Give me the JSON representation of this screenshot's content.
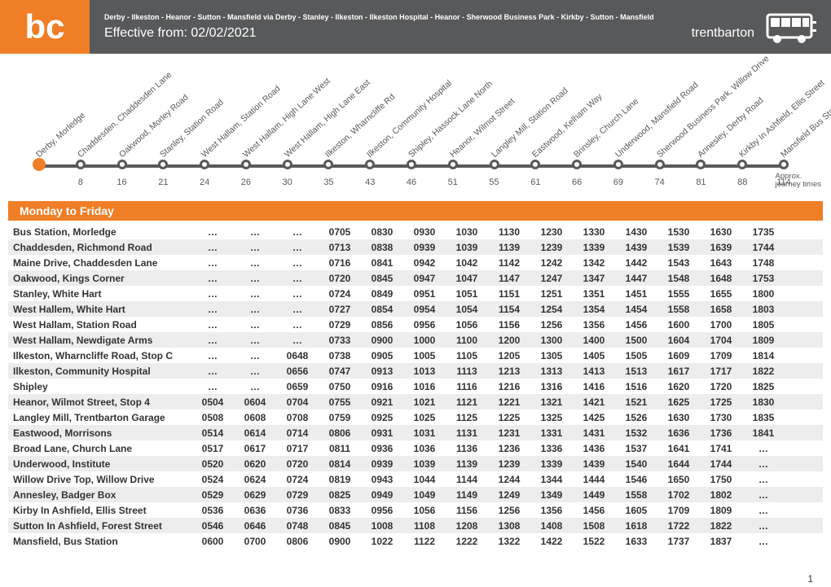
{
  "header": {
    "logo": "bc",
    "route_description": "Derby - Ilkeston - Heanor - Sutton - Mansfield via Derby - Stanley - Ilkeston - Ilkeston Hospital - Heanor - Sherwood Business Park - Kirkby - Sutton - Mansfield",
    "effective": "Effective from: 02/02/2021",
    "operator": "trentbarton"
  },
  "colors": {
    "accent": "#f07e26",
    "dark": "#58595b",
    "shade": "#ededed"
  },
  "diagram": {
    "approx_label": "Approx.\njourney times",
    "stops": [
      {
        "label": "Derby, Morledge",
        "time": ""
      },
      {
        "label": "Chaddesden, Chaddesden Lane",
        "time": "8"
      },
      {
        "label": "Oakwood, Morley Road",
        "time": "16"
      },
      {
        "label": "Stanley, Station Road",
        "time": "21"
      },
      {
        "label": "West Hallam, Station Road",
        "time": "24"
      },
      {
        "label": "West Hallam, High Lane West",
        "time": "26"
      },
      {
        "label": "West Hallam, High Lane East",
        "time": "30"
      },
      {
        "label": "Ilkeston, Wharncliffe Rd",
        "time": "35"
      },
      {
        "label": "Ilkeston, Community Hospital",
        "time": "43"
      },
      {
        "label": "Shipley, Hassock Lane North",
        "time": "46"
      },
      {
        "label": "Heanor, Wilmot Street",
        "time": "51"
      },
      {
        "label": "Langley Mill, Station Road",
        "time": "55"
      },
      {
        "label": "Eastwood, Kelham Way",
        "time": "61"
      },
      {
        "label": "Brinsley, Church Lane",
        "time": "66"
      },
      {
        "label": "Underwood, Mansfield Road",
        "time": "69"
      },
      {
        "label": "Sherwood Business Park, Willow Drive",
        "time": "74"
      },
      {
        "label": "Annesley, Derby Road",
        "time": "81"
      },
      {
        "label": "Kirkby In Ashfield, Ellis Street",
        "time": "88"
      },
      {
        "label": "Mansfield Bus Station",
        "time": "114"
      }
    ]
  },
  "timetable": {
    "day_header": "Monday to Friday",
    "rows": [
      {
        "stop": "Bus Station, Morledge",
        "times": [
          "…",
          "…",
          "…",
          "0705",
          "0830",
          "0930",
          "1030",
          "1130",
          "1230",
          "1330",
          "1430",
          "1530",
          "1630",
          "1735"
        ]
      },
      {
        "stop": "Chaddesden, Richmond Road",
        "times": [
          "…",
          "…",
          "…",
          "0713",
          "0838",
          "0939",
          "1039",
          "1139",
          "1239",
          "1339",
          "1439",
          "1539",
          "1639",
          "1744"
        ]
      },
      {
        "stop": "Maine Drive, Chaddesden Lane",
        "times": [
          "…",
          "…",
          "…",
          "0716",
          "0841",
          "0942",
          "1042",
          "1142",
          "1242",
          "1342",
          "1442",
          "1543",
          "1643",
          "1748"
        ]
      },
      {
        "stop": "Oakwood, Kings Corner",
        "times": [
          "…",
          "…",
          "…",
          "0720",
          "0845",
          "0947",
          "1047",
          "1147",
          "1247",
          "1347",
          "1447",
          "1548",
          "1648",
          "1753"
        ]
      },
      {
        "stop": "Stanley, White Hart",
        "times": [
          "…",
          "…",
          "…",
          "0724",
          "0849",
          "0951",
          "1051",
          "1151",
          "1251",
          "1351",
          "1451",
          "1555",
          "1655",
          "1800"
        ]
      },
      {
        "stop": "West Hallem, White Hart",
        "times": [
          "…",
          "…",
          "…",
          "0727",
          "0854",
          "0954",
          "1054",
          "1154",
          "1254",
          "1354",
          "1454",
          "1558",
          "1658",
          "1803"
        ]
      },
      {
        "stop": "West Hallam, Station Road",
        "times": [
          "…",
          "…",
          "…",
          "0729",
          "0856",
          "0956",
          "1056",
          "1156",
          "1256",
          "1356",
          "1456",
          "1600",
          "1700",
          "1805"
        ]
      },
      {
        "stop": "West Hallam, Newdigate Arms",
        "times": [
          "…",
          "…",
          "…",
          "0733",
          "0900",
          "1000",
          "1100",
          "1200",
          "1300",
          "1400",
          "1500",
          "1604",
          "1704",
          "1809"
        ]
      },
      {
        "stop": "Ilkeston, Wharncliffe Road, Stop C",
        "times": [
          "…",
          "…",
          "0648",
          "0738",
          "0905",
          "1005",
          "1105",
          "1205",
          "1305",
          "1405",
          "1505",
          "1609",
          "1709",
          "1814"
        ]
      },
      {
        "stop": "Ilkeston, Community Hospital",
        "times": [
          "…",
          "…",
          "0656",
          "0747",
          "0913",
          "1013",
          "1113",
          "1213",
          "1313",
          "1413",
          "1513",
          "1617",
          "1717",
          "1822"
        ]
      },
      {
        "stop": "Shipley",
        "times": [
          "…",
          "…",
          "0659",
          "0750",
          "0916",
          "1016",
          "1116",
          "1216",
          "1316",
          "1416",
          "1516",
          "1620",
          "1720",
          "1825"
        ]
      },
      {
        "stop": "Heanor, Wilmot Street, Stop 4",
        "times": [
          "0504",
          "0604",
          "0704",
          "0755",
          "0921",
          "1021",
          "1121",
          "1221",
          "1321",
          "1421",
          "1521",
          "1625",
          "1725",
          "1830"
        ]
      },
      {
        "stop": "Langley Mill, Trentbarton Garage",
        "times": [
          "0508",
          "0608",
          "0708",
          "0759",
          "0925",
          "1025",
          "1125",
          "1225",
          "1325",
          "1425",
          "1526",
          "1630",
          "1730",
          "1835"
        ]
      },
      {
        "stop": "Eastwood, Morrisons",
        "times": [
          "0514",
          "0614",
          "0714",
          "0806",
          "0931",
          "1031",
          "1131",
          "1231",
          "1331",
          "1431",
          "1532",
          "1636",
          "1736",
          "1841"
        ]
      },
      {
        "stop": "Broad Lane, Church Lane",
        "times": [
          "0517",
          "0617",
          "0717",
          "0811",
          "0936",
          "1036",
          "1136",
          "1236",
          "1336",
          "1436",
          "1537",
          "1641",
          "1741",
          "…"
        ]
      },
      {
        "stop": "Underwood, Institute",
        "times": [
          "0520",
          "0620",
          "0720",
          "0814",
          "0939",
          "1039",
          "1139",
          "1239",
          "1339",
          "1439",
          "1540",
          "1644",
          "1744",
          "…"
        ]
      },
      {
        "stop": "Willow Drive Top, Willow Drive",
        "times": [
          "0524",
          "0624",
          "0724",
          "0819",
          "0943",
          "1044",
          "1144",
          "1244",
          "1344",
          "1444",
          "1546",
          "1650",
          "1750",
          "…"
        ]
      },
      {
        "stop": "Annesley, Badger Box",
        "times": [
          "0529",
          "0629",
          "0729",
          "0825",
          "0949",
          "1049",
          "1149",
          "1249",
          "1349",
          "1449",
          "1558",
          "1702",
          "1802",
          "…"
        ]
      },
      {
        "stop": "Kirby In Ashfield, Ellis Street",
        "times": [
          "0536",
          "0636",
          "0736",
          "0833",
          "0956",
          "1056",
          "1156",
          "1256",
          "1356",
          "1456",
          "1605",
          "1709",
          "1809",
          "…"
        ]
      },
      {
        "stop": "Sutton In Ashfield, Forest Street",
        "times": [
          "0546",
          "0646",
          "0748",
          "0845",
          "1008",
          "1108",
          "1208",
          "1308",
          "1408",
          "1508",
          "1618",
          "1722",
          "1822",
          "…"
        ]
      },
      {
        "stop": "Mansfield, Bus Station",
        "times": [
          "0600",
          "0700",
          "0806",
          "0900",
          "1022",
          "1122",
          "1222",
          "1322",
          "1422",
          "1522",
          "1633",
          "1737",
          "1837",
          "…"
        ]
      }
    ]
  },
  "page_number": "1"
}
